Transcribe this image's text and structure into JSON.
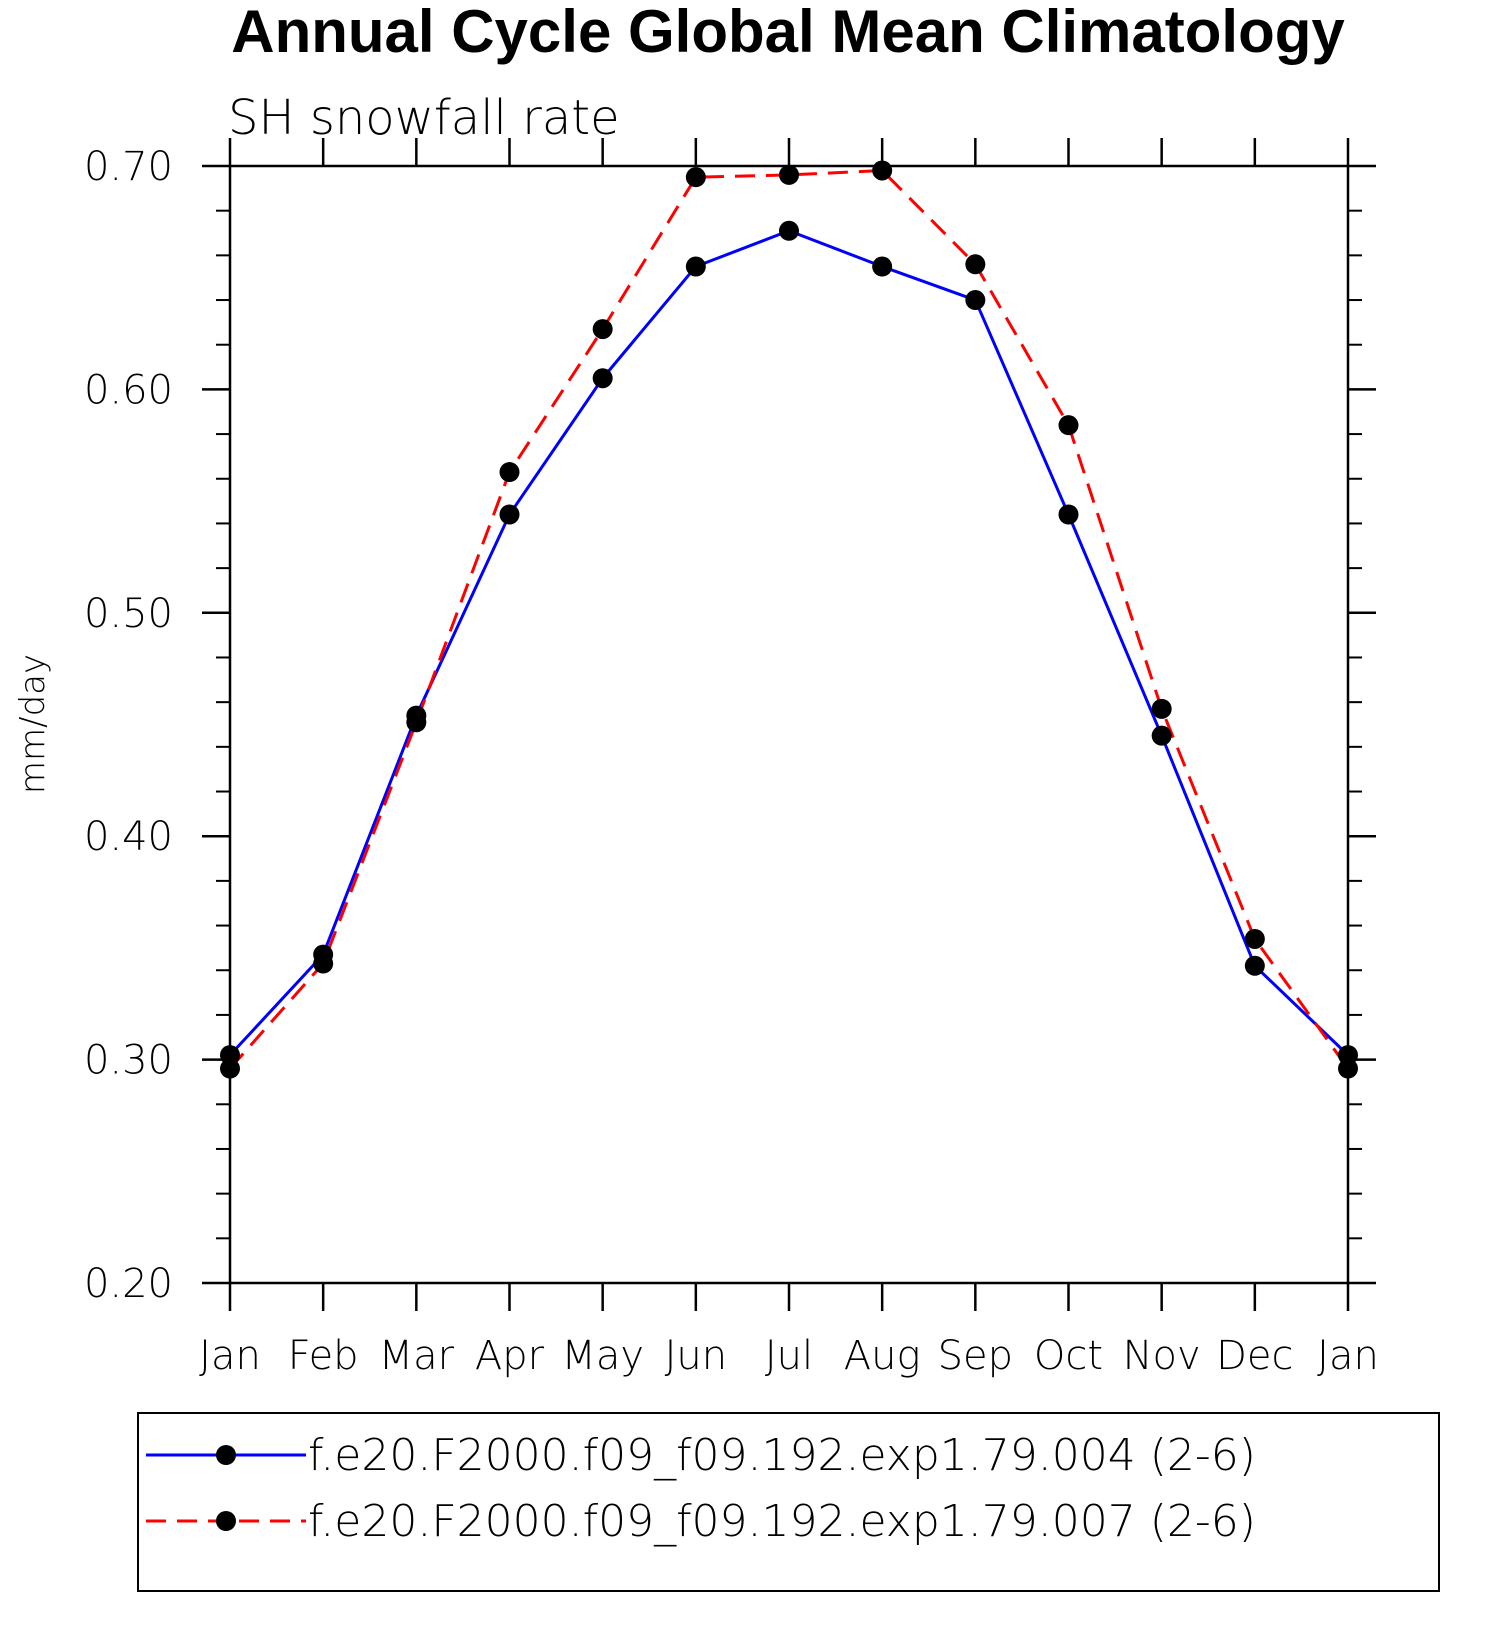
{
  "chart_data": {
    "type": "line",
    "title": "Annual Cycle Global Mean Climatology",
    "subtitle": "SH snowfall rate",
    "ylabel": "mm/day",
    "xlabel": "",
    "categories": [
      "Jan",
      "Feb",
      "Mar",
      "Apr",
      "May",
      "Jun",
      "Jul",
      "Aug",
      "Sep",
      "Oct",
      "Nov",
      "Dec",
      "Jan"
    ],
    "ylim": [
      0.2,
      0.7
    ],
    "yticks": [
      "0.20",
      "0.30",
      "0.40",
      "0.50",
      "0.60",
      "0.70"
    ],
    "grid": false,
    "legend_position": "bottom",
    "series": [
      {
        "name": "f.e20.F2000.f09_f09.192.exp1.79.004 (2-6)",
        "color": "#0000ff",
        "dash": "solid",
        "values": [
          0.302,
          0.347,
          0.454,
          0.544,
          0.605,
          0.655,
          0.671,
          0.655,
          0.64,
          0.544,
          0.445,
          0.342,
          0.302
        ]
      },
      {
        "name": "f.e20.F2000.f09_f09.192.exp1.79.007 (2-6)",
        "color": "#ff0000",
        "dash": "dashed",
        "values": [
          0.296,
          0.343,
          0.451,
          0.563,
          0.627,
          0.695,
          0.696,
          0.698,
          0.656,
          0.584,
          0.457,
          0.354,
          0.296
        ]
      }
    ]
  }
}
